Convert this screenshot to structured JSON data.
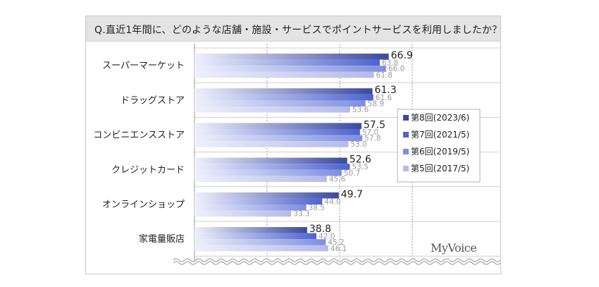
{
  "question": "Q.直近1年間に、どのような店舗・施設・サービスでポイントサービスを利用しましたか？",
  "brand": "MyVoice",
  "colors": {
    "series": [
      "#3a4aa0",
      "#4f63d0",
      "#7d8fe0",
      "#b3bbe8"
    ]
  },
  "chart_data": {
    "type": "bar",
    "orientation": "horizontal",
    "title": "Q.直近1年間に、どのような店舗・施設・サービスでポイントサービスを利用しましたか？",
    "categories": [
      "スーパーマーケット",
      "ドラッグストア",
      "コンビニエンスストア",
      "クレジットカード",
      "オンラインショップ",
      "家電量販店"
    ],
    "series": [
      {
        "name": "第8回(2023/6)",
        "values": [
          66.9,
          61.3,
          57.5,
          52.6,
          49.7,
          38.8
        ]
      },
      {
        "name": "第7回(2021/5)",
        "values": [
          63.8,
          61.6,
          57.0,
          53.5,
          44.0,
          42.0
        ]
      },
      {
        "name": "第6回(2019/5)",
        "values": [
          66.0,
          58.9,
          57.8,
          50.7,
          38.5,
          45.2
        ]
      },
      {
        "name": "第5回(2017/5)",
        "values": [
          61.8,
          53.6,
          53.0,
          45.6,
          33.3,
          46.1
        ]
      }
    ],
    "xlim": [
      0,
      100
    ],
    "grid": true,
    "legend_position": "right"
  }
}
